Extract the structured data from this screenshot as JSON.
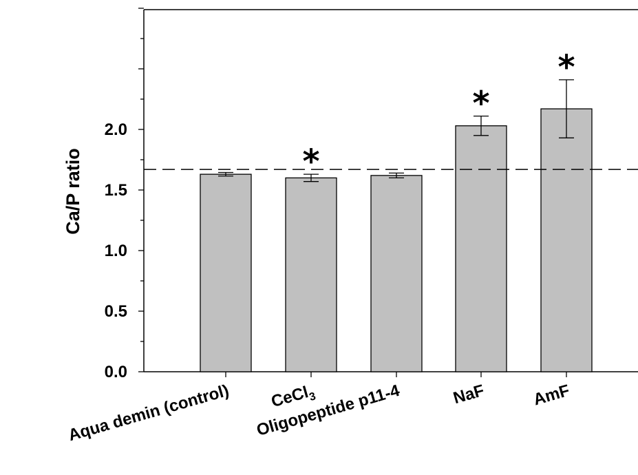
{
  "chart_data": {
    "type": "bar",
    "ylabel": "Ca/P ratio",
    "ylim": [
      0,
      3.0
    ],
    "yticks": [
      "0.0",
      "0.5",
      "1.0",
      "1.5",
      "2.0"
    ],
    "categories": [
      {
        "label": "Aqua demin (control)",
        "sub": ""
      },
      {
        "label": "CeCl",
        "sub": "3"
      },
      {
        "label": "Oligopeptide p11-4",
        "sub": ""
      },
      {
        "label": "NaF",
        "sub": ""
      },
      {
        "label": "AmF",
        "sub": ""
      }
    ],
    "values": [
      1.63,
      1.6,
      1.62,
      2.03,
      2.17
    ],
    "errors": [
      0.015,
      0.03,
      0.02,
      0.08,
      0.24
    ],
    "significance": [
      "",
      "*",
      "",
      "*",
      "*"
    ],
    "reference_line": 1.67,
    "bar_color": "#c0c0c0"
  }
}
